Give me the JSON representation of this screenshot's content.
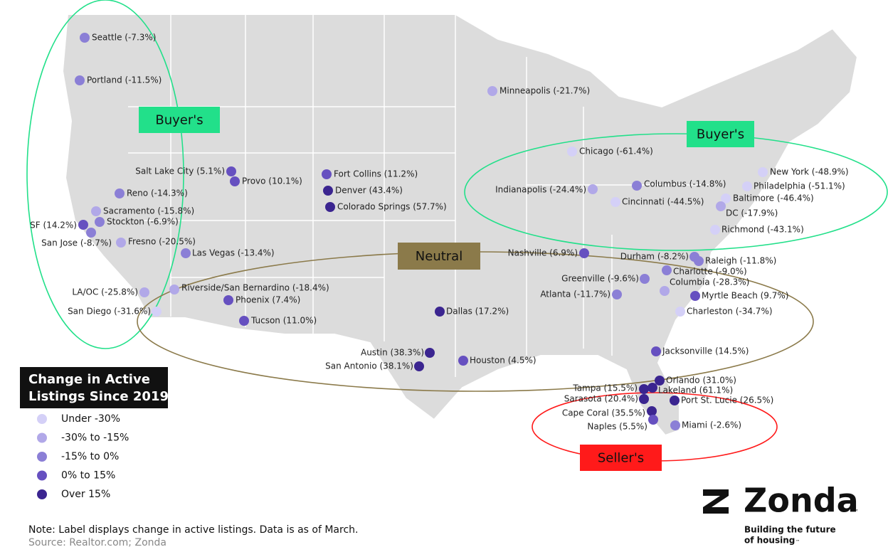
{
  "zones": [
    {
      "label": "Buyer's",
      "color": "#22e08a"
    },
    {
      "label": "Buyer's",
      "color": "#22e08a"
    },
    {
      "label": "Neutral",
      "color": "#8b7a4a"
    },
    {
      "label": "Seller's",
      "color": "#ff1a1a"
    }
  ],
  "cities": [
    {
      "label": "Seattle (-7.3%)",
      "color": "#8b7fd6"
    },
    {
      "label": "Portland (-11.5%)",
      "color": "#8b7fd6"
    },
    {
      "label": "Minneapolis (-21.7%)",
      "color": "#b1a8e8"
    },
    {
      "label": "Salt Lake City (5.1%)",
      "color": "#6650c0"
    },
    {
      "label": "Provo (10.1%)",
      "color": "#6650c0"
    },
    {
      "label": "Fort Collins (11.2%)",
      "color": "#6650c0"
    },
    {
      "label": "Denver (43.4%)",
      "color": "#3b2590"
    },
    {
      "label": "Colorado Springs (57.7%)",
      "color": "#3b2590"
    },
    {
      "label": "Reno (-14.3%)",
      "color": "#8b7fd6"
    },
    {
      "label": "Sacramento (-15.8%)",
      "color": "#b1a8e8"
    },
    {
      "label": "Stockton (-6.9%)",
      "color": "#8b7fd6"
    },
    {
      "label": "SF (14.2%)",
      "color": "#6650c0"
    },
    {
      "label": "San Jose (-8.7%)",
      "color": "#8b7fd6"
    },
    {
      "label": "Fresno (-20.5%)",
      "color": "#b1a8e8"
    },
    {
      "label": "Las Vegas (-13.4%)",
      "color": "#8b7fd6"
    },
    {
      "label": "LA/OC (-25.8%)",
      "color": "#b1a8e8"
    },
    {
      "label": "Riverside/San Bernardino (-18.4%)",
      "color": "#b1a8e8"
    },
    {
      "label": "Phoenix (7.4%)",
      "color": "#6650c0"
    },
    {
      "label": "San Diego (-31.6%)",
      "color": "#d4d0f7"
    },
    {
      "label": "Tucson (11.0%)",
      "color": "#6650c0"
    },
    {
      "label": "Dallas (17.2%)",
      "color": "#3b2590"
    },
    {
      "label": "Austin (38.3%)",
      "color": "#3b2590"
    },
    {
      "label": "San Antonio (38.1%)",
      "color": "#3b2590"
    },
    {
      "label": "Houston (4.5%)",
      "color": "#6650c0"
    },
    {
      "label": "Chicago (-61.4%)",
      "color": "#d4d0f7"
    },
    {
      "label": "Indianapolis (-24.4%)",
      "color": "#b1a8e8"
    },
    {
      "label": "Columbus (-14.8%)",
      "color": "#8b7fd6"
    },
    {
      "label": "Cincinnati (-44.5%)",
      "color": "#d4d0f7"
    },
    {
      "label": "New York (-48.9%)",
      "color": "#d4d0f7"
    },
    {
      "label": "Philadelphia (-51.1%)",
      "color": "#d4d0f7"
    },
    {
      "label": "Baltimore (-46.4%)",
      "color": "#d4d0f7"
    },
    {
      "label": "DC (-17.9%)",
      "color": "#b1a8e8"
    },
    {
      "label": "Richmond (-43.1%)",
      "color": "#d4d0f7"
    },
    {
      "label": "Nashville (6.9%)",
      "color": "#6650c0"
    },
    {
      "label": "Durham (-8.2%)",
      "color": "#8b7fd6"
    },
    {
      "label": "Raleigh (-11.8%)",
      "color": "#8b7fd6"
    },
    {
      "label": "Charlotte (-9.0%)",
      "color": "#8b7fd6"
    },
    {
      "label": "Greenville (-9.6%)",
      "color": "#8b7fd6"
    },
    {
      "label": "Columbia (-28.3%)",
      "color": "#b1a8e8"
    },
    {
      "label": "Atlanta (-11.7%)",
      "color": "#8b7fd6"
    },
    {
      "label": "Myrtle Beach (9.7%)",
      "color": "#6650c0"
    },
    {
      "label": "Charleston (-34.7%)",
      "color": "#d4d0f7"
    },
    {
      "label": "Jacksonville (14.5%)",
      "color": "#6650c0"
    },
    {
      "label": "Orlando (31.0%)",
      "color": "#3b2590"
    },
    {
      "label": "Tampa (15.5%)",
      "color": "#3b2590"
    },
    {
      "label": "Lakeland (61.1%)",
      "color": "#3b2590"
    },
    {
      "label": "Sarasota (20.4%)",
      "color": "#3b2590"
    },
    {
      "label": "Port St. Lucie (26.5%)",
      "color": "#3b2590"
    },
    {
      "label": "Cape Coral (35.5%)",
      "color": "#3b2590"
    },
    {
      "label": "Naples (5.5%)",
      "color": "#6650c0"
    },
    {
      "label": "Miami (-2.6%)",
      "color": "#8b7fd6"
    }
  ],
  "legend": {
    "title_lines": [
      "Change in Active",
      "Listings Since 2019"
    ],
    "items": [
      {
        "label": "Under -30%",
        "color": "#d4d0f7"
      },
      {
        "label": "-30% to -15%",
        "color": "#b1a8e8"
      },
      {
        "label": "-15% to 0%",
        "color": "#8b7fd6"
      },
      {
        "label": "0% to 15%",
        "color": "#6650c0"
      },
      {
        "label": "Over 15%",
        "color": "#3b2590"
      }
    ]
  },
  "footer": {
    "note": "Note: Label displays change in active listings. Data is as of March.",
    "source": "Source: Realtor.com; Zonda"
  },
  "logo": {
    "name": "Zonda",
    "tm": "™",
    "tagline_lines": [
      "Building the future",
      "of housing"
    ]
  }
}
